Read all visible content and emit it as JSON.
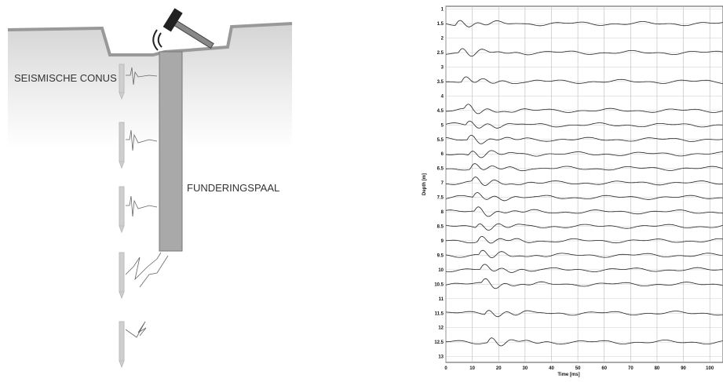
{
  "diagram": {
    "labels": {
      "cone": "SEISMISCHE CONUS",
      "pile": "FUNDERINGSPAAL"
    }
  },
  "chart_data": {
    "type": "seismogram",
    "xlabel": "Time [ms]",
    "ylabel": "Depth [m]",
    "xlim": [
      0,
      105
    ],
    "ylim": [
      0.9,
      13.2
    ],
    "xticks": [
      0,
      10,
      20,
      30,
      40,
      50,
      60,
      70,
      80,
      90,
      100
    ],
    "yticks": [
      1,
      1.5,
      2,
      2.5,
      3,
      3.5,
      4,
      4.5,
      5,
      5.5,
      6,
      6.5,
      7,
      7.5,
      8,
      8.5,
      9,
      9.5,
      10,
      10.5,
      11,
      11.5,
      12,
      12.5,
      13
    ],
    "trace_depths": [
      1.5,
      2.5,
      3.5,
      4.5,
      5,
      5.5,
      6,
      6.5,
      7,
      7.5,
      8,
      8.5,
      9,
      9.5,
      10,
      10.5,
      11.5,
      12.5
    ],
    "grid": true,
    "color": "#222222"
  }
}
